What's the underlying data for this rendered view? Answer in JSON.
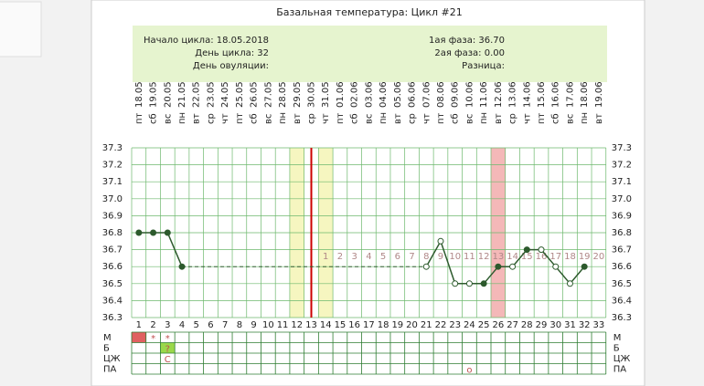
{
  "chart_data": {
    "type": "line",
    "title": "Базальная температура: Цикл #21",
    "info_left": [
      "Начало цикла: 18.05.2018",
      "День цикла: 32",
      "День овуляции:"
    ],
    "info_right": [
      "1ая фаза: 36.70",
      "2ая фаза: 0.00",
      "Разница:"
    ],
    "x": [
      1,
      2,
      3,
      4,
      5,
      6,
      7,
      8,
      9,
      10,
      11,
      12,
      13,
      14,
      15,
      16,
      17,
      18,
      19,
      20,
      21,
      22,
      23,
      24,
      25,
      26,
      27,
      28,
      29,
      30,
      31,
      32,
      33
    ],
    "dates": [
      "18.05",
      "19.05",
      "20.05",
      "21.05",
      "22.05",
      "23.05",
      "24.05",
      "25.05",
      "26.05",
      "27.05",
      "28.05",
      "29.05",
      "30.05",
      "31.05",
      "01.06",
      "02.06",
      "03.06",
      "04.06",
      "05.06",
      "06.06",
      "07.06",
      "08.06",
      "09.06",
      "10.06",
      "11.06",
      "12.06",
      "13.06",
      "14.06",
      "15.06",
      "16.06",
      "17.06",
      "18.06",
      "19.06"
    ],
    "weekdays": [
      "пт",
      "сб",
      "вс",
      "пн",
      "вт",
      "ср",
      "чт",
      "пт",
      "сб",
      "вс",
      "пн",
      "вт",
      "ср",
      "чт",
      "пт",
      "сб",
      "вс",
      "пн",
      "вт",
      "ср",
      "чт",
      "пт",
      "сб",
      "вс",
      "пн",
      "вт",
      "ср",
      "чт",
      "пт",
      "сб",
      "вс",
      "пн",
      "вт"
    ],
    "series": [
      {
        "color": "#2d5a2d",
        "values": [
          36.8,
          36.8,
          36.8,
          36.6,
          null,
          null,
          null,
          null,
          null,
          null,
          null,
          null,
          null,
          null,
          null,
          null,
          null,
          null,
          null,
          null,
          36.6,
          36.75,
          36.5,
          36.5,
          36.5,
          36.6,
          36.6,
          36.7,
          36.7,
          36.6,
          36.5,
          36.6,
          null
        ],
        "filled": [
          true,
          true,
          true,
          true,
          false,
          false,
          false,
          false,
          false,
          false,
          false,
          false,
          false,
          false,
          false,
          false,
          false,
          false,
          false,
          false,
          false,
          false,
          false,
          false,
          true,
          true,
          false,
          true,
          false,
          false,
          false,
          true,
          false
        ]
      }
    ],
    "phase_day_labels": [
      null,
      null,
      null,
      null,
      null,
      null,
      null,
      null,
      null,
      null,
      null,
      null,
      null,
      "1",
      "2",
      "3",
      "4",
      "5",
      "6",
      "7",
      "8",
      "9",
      "10",
      "11",
      "12",
      "13",
      "14",
      "15",
      "16",
      "17",
      "18",
      "19",
      "20"
    ],
    "ylim": [
      36.3,
      37.3
    ],
    "yticks": [
      {
        "value": 36.3,
        "label": "36.3"
      },
      {
        "value": 36.4,
        "label": "36.4"
      },
      {
        "value": 36.5,
        "label": "36.5"
      },
      {
        "value": 36.6,
        "label": "36.6"
      },
      {
        "value": 36.7,
        "label": "36.7"
      },
      {
        "value": 36.8,
        "label": "36.8"
      },
      {
        "value": 36.9,
        "label": "36.9"
      },
      {
        "value": 37.0,
        "label": "37.0"
      },
      {
        "value": 37.1,
        "label": "37.1"
      },
      {
        "value": 37.2,
        "label": "37.2"
      },
      {
        "value": 37.3,
        "label": "37.3"
      }
    ],
    "yellow_days": [
      12,
      14
    ],
    "yellow_color": "#f6f6c0",
    "pink_days": [
      26
    ],
    "pink_color": "#f4b8b8",
    "red_line_day": 13,
    "red_line_color": "#cc0000",
    "rows": [
      {
        "label": "М",
        "highlight": [
          1
        ],
        "highlight_color": "#e06060",
        "cells": [
          null,
          "*",
          "*",
          null,
          null,
          null,
          null,
          null,
          null,
          null,
          null,
          null,
          null,
          null,
          null,
          null,
          null,
          null,
          null,
          null,
          null,
          null,
          null,
          null,
          null,
          null,
          null,
          null,
          null,
          null,
          null,
          null,
          null
        ]
      },
      {
        "label": "Б",
        "highlight": [
          3
        ],
        "highlight_color": "#9ad84a",
        "cells": [
          null,
          null,
          "?",
          null,
          null,
          null,
          null,
          null,
          null,
          null,
          null,
          null,
          null,
          null,
          null,
          null,
          null,
          null,
          null,
          null,
          null,
          null,
          null,
          null,
          null,
          null,
          null,
          null,
          null,
          null,
          null,
          null,
          null
        ]
      },
      {
        "label": "ЦЖ",
        "highlight": [],
        "highlight_color": "#ffffff",
        "cells": [
          null,
          null,
          "С",
          null,
          null,
          null,
          null,
          null,
          null,
          null,
          null,
          null,
          null,
          null,
          null,
          null,
          null,
          null,
          null,
          null,
          null,
          null,
          null,
          null,
          null,
          null,
          null,
          null,
          null,
          null,
          null,
          null,
          null
        ]
      },
      {
        "label": "ПА",
        "highlight": [],
        "highlight_color": "#ffffff",
        "cells": [
          null,
          null,
          null,
          null,
          null,
          null,
          null,
          null,
          null,
          null,
          null,
          null,
          null,
          null,
          null,
          null,
          null,
          null,
          null,
          null,
          null,
          null,
          null,
          "o",
          null,
          null,
          null,
          null,
          null,
          null,
          null,
          null,
          null
        ]
      }
    ]
  }
}
